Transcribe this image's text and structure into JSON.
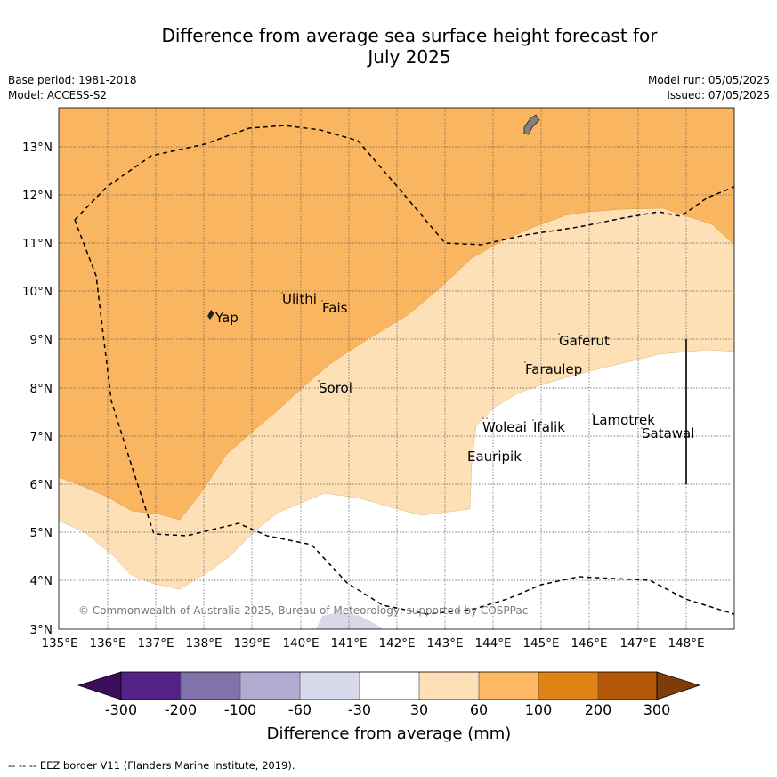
{
  "header": {
    "title_line1": "Difference from average sea surface height forecast for",
    "title_line2": "July 2025"
  },
  "meta": {
    "base_period": "Base period: 1981-2018",
    "model": "Model: ACCESS-S2",
    "model_run": "Model run: 05/05/2025",
    "issued": "Issued: 07/05/2025"
  },
  "map": {
    "lat_labels": [
      "3°N",
      "4°N",
      "5°N",
      "6°N",
      "7°N",
      "8°N",
      "9°N",
      "10°N",
      "11°N",
      "12°N",
      "13°N"
    ],
    "lon_labels": [
      "135°E",
      "136°E",
      "137°E",
      "138°E",
      "139°E",
      "140°E",
      "141°E",
      "142°E",
      "143°E",
      "144°E",
      "145°E",
      "146°E",
      "147°E",
      "148°E"
    ],
    "places": [
      "Yap",
      "Ulithi",
      "Fais",
      "Sorol",
      "Gaferut",
      "Faraulep",
      "Woleai",
      "Ifalik",
      "Lamotrek",
      "Satawal",
      "Eauripik"
    ],
    "copyright": "© Commonwealth of Australia 2025, Bureau of Meteorology, supported by COSPPac",
    "colors": {
      "range_30_60": "#fde0b6",
      "range_60_100": "#f9b55f",
      "range_neg60_neg30": "#d8d8ea",
      "land": "#808080"
    }
  },
  "colorbar": {
    "tick_labels": [
      "-300",
      "-200",
      "-100",
      "-60",
      "-30",
      "30",
      "60",
      "100",
      "200",
      "300"
    ],
    "colors": [
      "#3c0d5c",
      "#522286",
      "#8073ac",
      "#b2abd2",
      "#d8daeb",
      "#ffffff",
      "#fee0b6",
      "#fdb863",
      "#e08214",
      "#b35806",
      "#7f3b08"
    ],
    "title": "Difference from average (mm)"
  },
  "footnote": "-- -- -- EEZ border V11 (Flanders Marine Institute, 2019)."
}
